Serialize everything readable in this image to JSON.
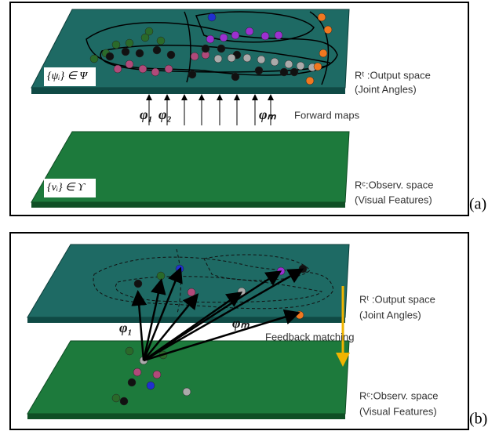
{
  "panel_a": {
    "psi_label": "{ψᵢ} ∈ Ψ",
    "output_space": "Rᵗ :Output space",
    "output_sub": "(Joint Angles)",
    "maps": [
      "φ₁",
      "φ₂",
      "φₘ"
    ],
    "forward_maps": "Forward maps",
    "upsilon_label": "{vᵢ} ∈ ϒ",
    "observ_space": "Rᶜ:Observ. space",
    "observ_sub": "(Visual Features)",
    "tag": "(a)"
  },
  "panel_b": {
    "output_space": "Rᵗ :Output space",
    "output_sub": "(Joint Angles)",
    "maps": [
      "φ₁",
      "φₘ"
    ],
    "feedback": "Feedback matching",
    "observ_space": "Rᶜ:Observ. space",
    "observ_sub": "(Visual Features)",
    "tag": "(b)"
  }
}
